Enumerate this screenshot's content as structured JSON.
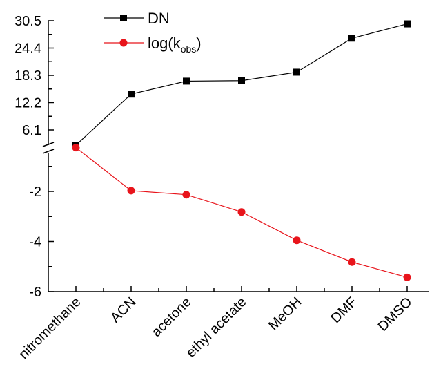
{
  "chart_data": {
    "type": "line",
    "categories": [
      "nitromethane",
      "ACN",
      "acetone",
      "ethyl acetate",
      "MeOH",
      "DMF",
      "DMSO"
    ],
    "series": [
      {
        "name": "DN",
        "legend_main": "DN",
        "color": "#000000",
        "marker": "square",
        "values": [
          2.7,
          14.1,
          17.0,
          17.1,
          19.0,
          26.6,
          29.8
        ],
        "y_ticks": [
          "30.5",
          "24.4",
          "18.3",
          "12.2",
          "6.1"
        ],
        "y_tick_values": [
          30.5,
          24.4,
          18.3,
          12.2,
          6.1
        ]
      },
      {
        "name": "log(kobs)",
        "legend_main": "log(k",
        "legend_sub": "obs",
        "legend_tail": ")",
        "color": "#e8141b",
        "marker": "circle",
        "values": [
          -0.25,
          -1.97,
          -2.13,
          -2.82,
          -3.95,
          -4.82,
          -5.43
        ],
        "y_ticks": [
          "-2",
          "-4",
          "-6"
        ],
        "y_tick_values": [
          -2,
          -4,
          -6
        ]
      }
    ],
    "upper_ylim": [
      0,
      30.5
    ],
    "lower_ylim": [
      -6,
      0
    ],
    "axis_break": true,
    "legend_position": "top-left",
    "grid": false
  }
}
